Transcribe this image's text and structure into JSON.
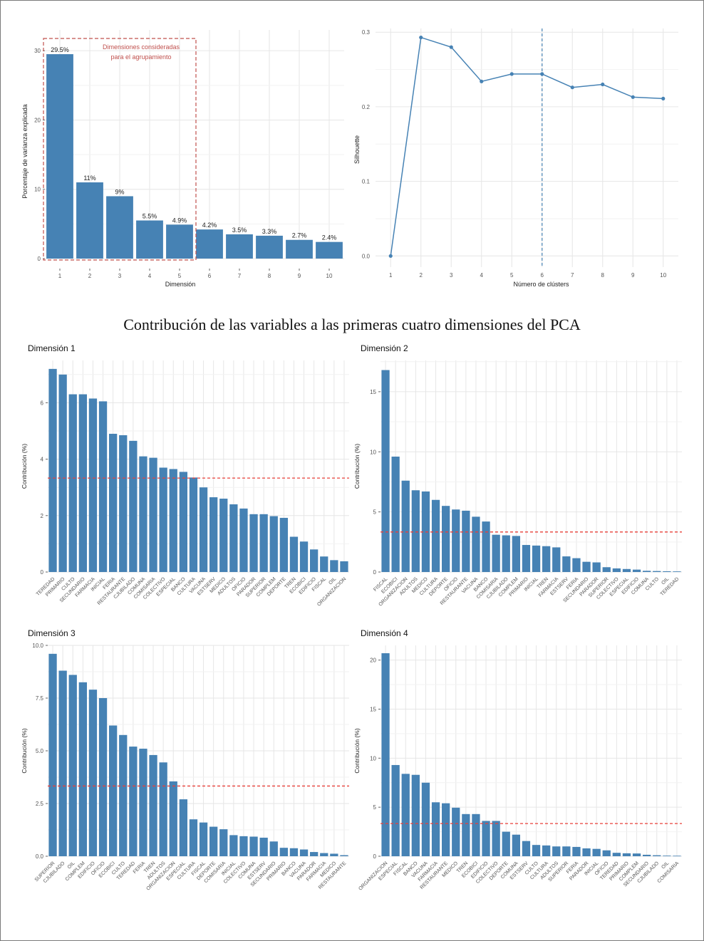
{
  "page": {
    "section_title": "Contribución de las variables a las primeras cuatro dimensiones del PCA"
  },
  "chart_data": [
    {
      "type": "bar",
      "title": "",
      "xlabel": "Dimensión",
      "ylabel": "Porcentaje de varianza explicada",
      "categories": [
        "1",
        "2",
        "3",
        "4",
        "5",
        "6",
        "7",
        "8",
        "9",
        "10"
      ],
      "values": [
        29.5,
        11,
        9,
        5.5,
        4.9,
        4.2,
        3.5,
        3.3,
        2.7,
        2.4
      ],
      "data_labels": [
        "29.5%",
        "11%",
        "9%",
        "5.5%",
        "4.9%",
        "4.2%",
        "3.5%",
        "3.3%",
        "2.7%",
        "2.4%"
      ],
      "ylim": [
        0,
        33
      ],
      "yticks": [
        0,
        10,
        20,
        30
      ],
      "grid": true,
      "bar_color": "#4682b4",
      "annotation": {
        "text_line1": "Dimensiones consideradas",
        "text_line2": "para el agrupamiento",
        "range_start": "1",
        "range_end": "5",
        "color": "#c0504d"
      }
    },
    {
      "type": "line",
      "title": "",
      "xlabel": "Número de clústers",
      "ylabel": "Silhouette",
      "x": [
        1,
        2,
        3,
        4,
        5,
        6,
        7,
        8,
        9,
        10
      ],
      "y": [
        0.0,
        0.293,
        0.28,
        0.234,
        0.244,
        0.244,
        0.226,
        0.23,
        0.213,
        0.211
      ],
      "xlim": [
        0.5,
        10.5
      ],
      "ylim": [
        -0.015,
        0.305
      ],
      "yticks": [
        0.0,
        0.1,
        0.2,
        0.3
      ],
      "ytick_labels": [
        "0.0",
        "0.1",
        "0.2",
        "0.3"
      ],
      "vline_x": 6,
      "grid": true,
      "line_color": "#4682b4"
    },
    {
      "type": "bar",
      "title": "Dimensión 1",
      "xlabel": "",
      "ylabel": "Contribución (%)",
      "categories": [
        "TEREDAD",
        "PRIMARIO",
        "CULTO",
        "SECUNDARIO",
        "FARMACIA",
        "INICIAL",
        "FERIA",
        "RESTAURANTE",
        "CJUBILADO",
        "COMUNA",
        "COMISARIA",
        "COLECTIVO",
        "ESPECIAL",
        "BANCO",
        "CULTURA",
        "VACUNA",
        "ESTSERV",
        "MEDICO",
        "ADULTOS",
        "OFICIO",
        "PARADOR",
        "SUPERIOR",
        "COMPLEM",
        "DEPORTE",
        "TREN",
        "ECOBICI",
        "EDIFICIO",
        "FISCAL",
        "OIL",
        "ORGANIZACION"
      ],
      "values": [
        7.2,
        7.0,
        6.3,
        6.3,
        6.15,
        6.05,
        4.9,
        4.85,
        4.65,
        4.1,
        4.05,
        3.7,
        3.65,
        3.55,
        3.35,
        3.0,
        2.65,
        2.6,
        2.4,
        2.25,
        2.05,
        2.05,
        1.98,
        1.92,
        1.25,
        1.08,
        0.8,
        0.55,
        0.42,
        0.38
      ],
      "ylim": [
        0,
        7.5
      ],
      "yticks": [
        0,
        2,
        4,
        6
      ],
      "ytick_labels": [
        "0",
        "2",
        "4",
        "6"
      ],
      "reference_line": 3.33,
      "grid": true,
      "bar_color": "#4682b4"
    },
    {
      "type": "bar",
      "title": "Dimensión 2",
      "xlabel": "",
      "ylabel": "Contribución (%)",
      "categories": [
        "FISCAL",
        "ECOBICI",
        "ORGANIZACION",
        "ADULTOS",
        "MEDICO",
        "CULTURA",
        "DEPORTE",
        "OFICIO",
        "RESTAURANTE",
        "VACUNA",
        "BANCO",
        "COMISARIA",
        "CJUBILADO",
        "COMPLEM",
        "PRIMARIO",
        "INICIAL",
        "TREN",
        "FARMACIA",
        "ESTSERV",
        "FERIA",
        "SECUNDARIO",
        "PARADOR",
        "SUPERIOR",
        "COLECTIVO",
        "ESPECIAL",
        "EDIFICIO",
        "COMUNA",
        "CULTO",
        "OIL",
        "TEREDAD"
      ],
      "values": [
        16.8,
        9.6,
        7.6,
        6.8,
        6.7,
        6.0,
        5.5,
        5.2,
        5.1,
        4.6,
        4.2,
        3.1,
        3.05,
        3.0,
        2.25,
        2.2,
        2.15,
        2.05,
        1.3,
        1.15,
        0.85,
        0.8,
        0.4,
        0.3,
        0.25,
        0.2,
        0.1,
        0.08,
        0.06,
        0.05
      ],
      "ylim": [
        0,
        17.6
      ],
      "yticks": [
        0,
        5,
        10,
        15
      ],
      "ytick_labels": [
        "0",
        "5",
        "10",
        "15"
      ],
      "reference_line": 3.33,
      "grid": true,
      "bar_color": "#4682b4"
    },
    {
      "type": "bar",
      "title": "Dimensión 3",
      "xlabel": "",
      "ylabel": "Contribución (%)",
      "categories": [
        "SUPERIOR",
        "CJUBILADO",
        "OIL",
        "COMPLEM",
        "EDIFICIO",
        "OFICIO",
        "ECOBICI",
        "CULTO",
        "TEREDAD",
        "FERIA",
        "TREN",
        "ADULTOS",
        "ORGANIZACION",
        "ESPECIAL",
        "CULTURA",
        "FISCAL",
        "DEPORTE",
        "COMISARIA",
        "INICIAL",
        "COLECTIVO",
        "COMUNA",
        "ESTSERV",
        "SECUNDARIO",
        "PRIMARIO",
        "BANCO",
        "VACUNA",
        "PARADOR",
        "FARMACIA",
        "MEDICO",
        "RESTAURANTE"
      ],
      "values": [
        9.6,
        8.8,
        8.6,
        8.25,
        7.9,
        7.5,
        6.2,
        5.75,
        5.2,
        5.1,
        4.8,
        4.45,
        3.55,
        2.7,
        1.75,
        1.6,
        1.4,
        1.28,
        1.0,
        0.95,
        0.93,
        0.88,
        0.7,
        0.4,
        0.38,
        0.32,
        0.2,
        0.15,
        0.12,
        0.05
      ],
      "ylim": [
        0,
        10
      ],
      "yticks": [
        0.0,
        2.5,
        5.0,
        7.5,
        10.0
      ],
      "ytick_labels": [
        "0.0",
        "2.5",
        "5.0",
        "7.5",
        "10.0"
      ],
      "reference_line": 3.33,
      "grid": true,
      "bar_color": "#4682b4"
    },
    {
      "type": "bar",
      "title": "Dimensión 4",
      "xlabel": "",
      "ylabel": "Contribución (%)",
      "categories": [
        "ORGANIZACION",
        "ESPECIAL",
        "FISCAL",
        "BANCO",
        "VACUNA",
        "FARMACIA",
        "RESTAURANTE",
        "MEDICO",
        "TREN",
        "ECOBICI",
        "EDIFICIO",
        "COLECTIVO",
        "DEPORTE",
        "COMUNA",
        "ESTSERV",
        "CULTO",
        "CULTURA",
        "ADULTOS",
        "SUPERIOR",
        "FERIA",
        "PARADOR",
        "INICIAL",
        "OFICIO",
        "TEREDAD",
        "PRIMARIO",
        "COMPLEM",
        "SECUNDARIO",
        "CJUBILADO",
        "OIL",
        "COMISARIA"
      ],
      "values": [
        20.7,
        9.3,
        8.4,
        8.3,
        7.5,
        5.5,
        5.4,
        4.95,
        4.3,
        4.3,
        3.6,
        3.6,
        2.5,
        2.2,
        1.55,
        1.15,
        1.1,
        1.0,
        1.0,
        0.95,
        0.8,
        0.75,
        0.6,
        0.35,
        0.3,
        0.28,
        0.15,
        0.1,
        0.06,
        0.05
      ],
      "ylim": [
        0,
        21.5
      ],
      "yticks": [
        0,
        5,
        10,
        15,
        20
      ],
      "ytick_labels": [
        "0",
        "5",
        "10",
        "15",
        "20"
      ],
      "reference_line": 3.33,
      "grid": true,
      "bar_color": "#4682b4"
    }
  ]
}
